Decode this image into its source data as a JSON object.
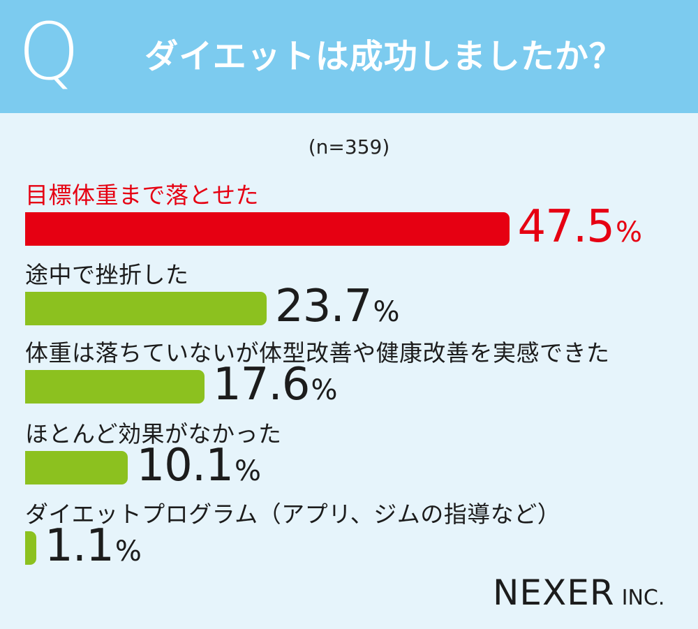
{
  "header": {
    "q_mark": "Q",
    "question": "ダイエットは成功しましたか？"
  },
  "sample_size": "(n=359)",
  "colors": {
    "header_bg": "#7ccbef",
    "page_bg": "#e6f4fb",
    "highlight": "#e60012",
    "bar": "#8cc11f",
    "text": "#1c1c1c"
  },
  "chart_data": {
    "type": "bar",
    "orientation": "horizontal",
    "categories": [
      "目標体重まで落とせた",
      "途中で挫折した",
      "体重は落ちていないが体型改善や健康改善を実感できた",
      "ほとんど効果がなかった",
      "ダイエットプログラム（アプリ、ジムの指導など）"
    ],
    "values": [
      47.5,
      23.7,
      17.6,
      10.1,
      1.1
    ],
    "value_labels": [
      "47.5",
      "23.7",
      "17.6",
      "10.1",
      "1.1"
    ],
    "unit": "%",
    "highlight_index": 0,
    "xlim": [
      0,
      50
    ]
  },
  "logo": {
    "main": "NEXER",
    "sub": "INC."
  }
}
